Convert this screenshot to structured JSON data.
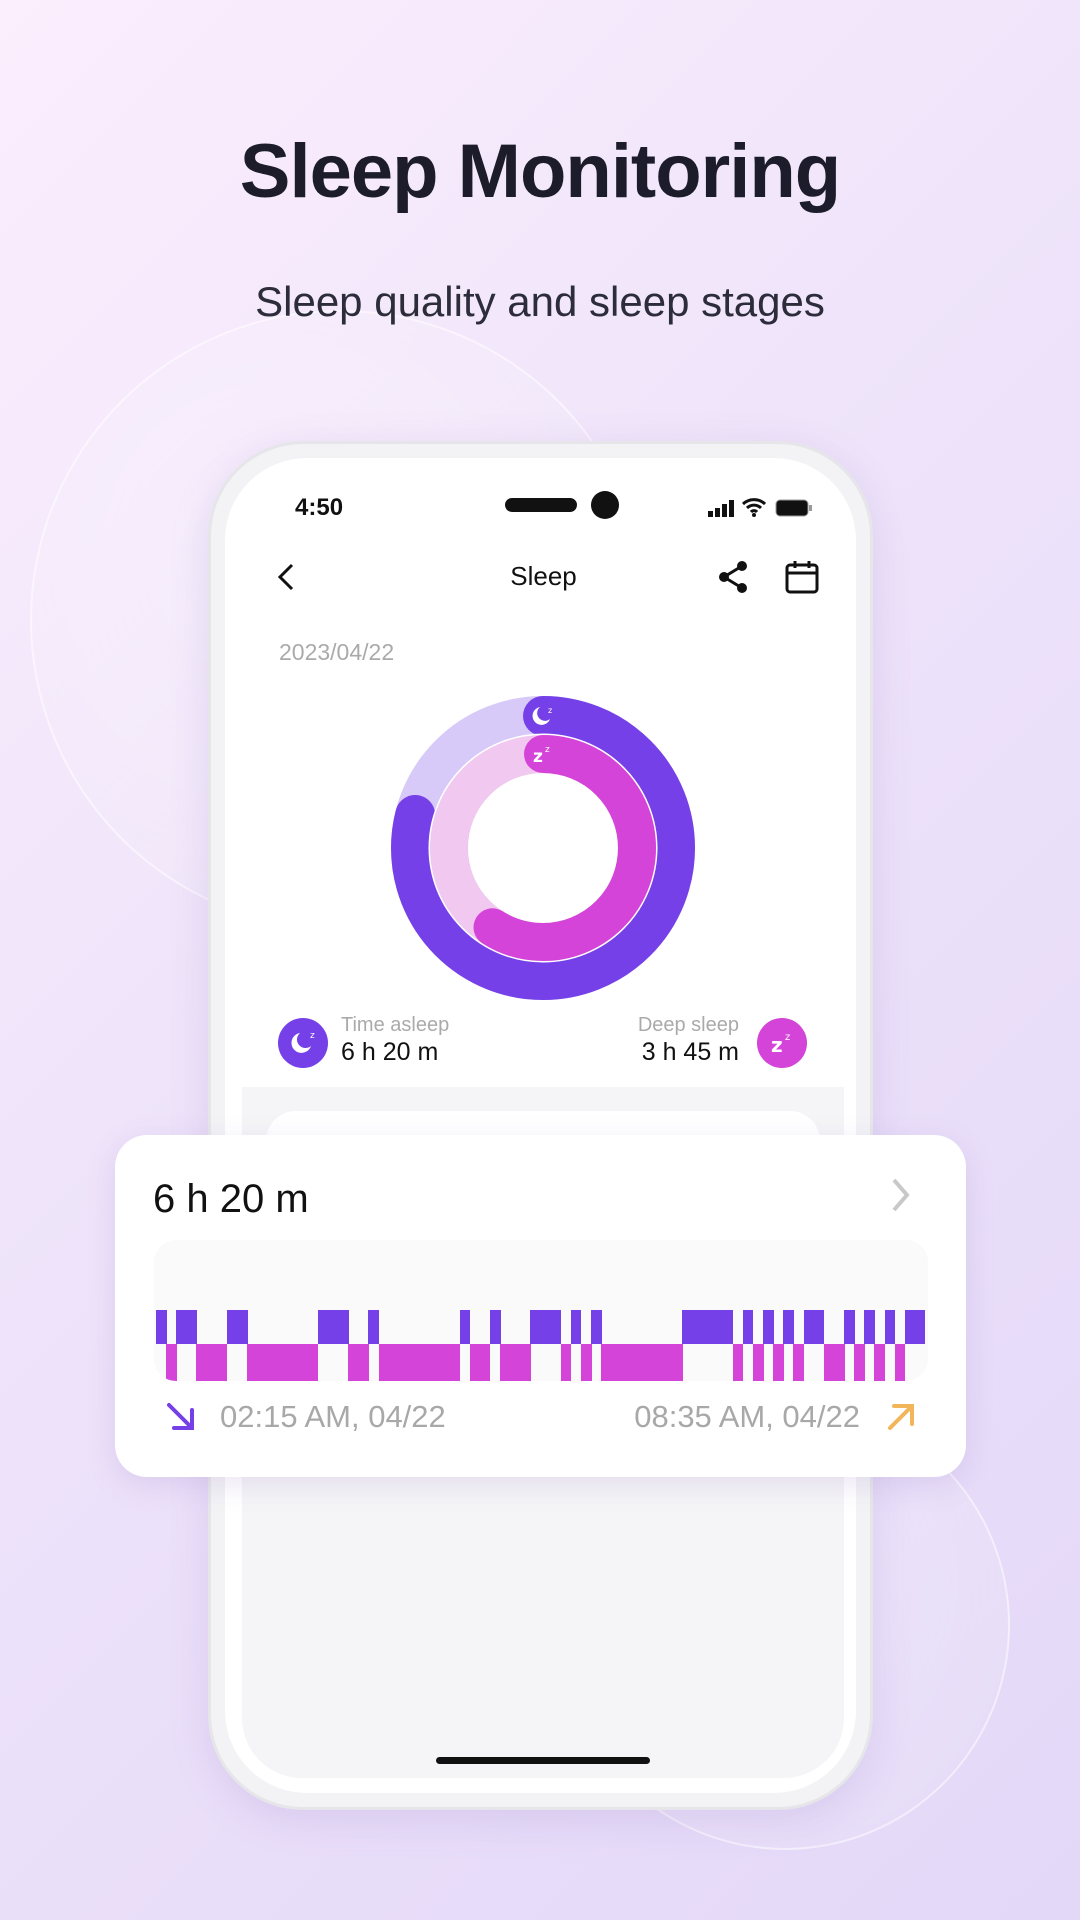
{
  "header": {
    "title": "Sleep Monitoring",
    "subtitle": "Sleep quality and sleep stages"
  },
  "status_bar": {
    "time": "4:50",
    "icons": [
      "signal-icon",
      "wifi-icon",
      "battery-icon"
    ]
  },
  "nav": {
    "title": "Sleep",
    "back_icon": "chevron-left-icon",
    "actions": [
      "share-icon",
      "calendar-icon"
    ]
  },
  "date": "2023/04/22",
  "colors": {
    "light_sleep": "#7540e8",
    "deep_sleep": "#d444d8",
    "light_track": "#d7caf8",
    "deep_track": "#f0c8f0"
  },
  "summary": {
    "time_asleep": {
      "label": "Time asleep",
      "value": "6 h 20 m",
      "icon": "moon-icon"
    },
    "deep_sleep": {
      "label": "Deep sleep",
      "value": "3 h 45 m",
      "icon": "zzz-icon"
    }
  },
  "card": {
    "duration": "6 h 20 m",
    "start": "02:15 AM, 04/22",
    "end": "08:35 AM, 04/22"
  },
  "chart_data": {
    "type": "bar",
    "rings": [
      {
        "name": "Time asleep",
        "fraction": 0.79
      },
      {
        "name": "Deep sleep",
        "fraction": 0.59
      }
    ],
    "timeline_start": "02:15",
    "timeline_end": "08:35",
    "segments_minutes": [
      [
        "light",
        5
      ],
      [
        "deep",
        5
      ],
      [
        "light",
        10
      ],
      [
        "deep",
        15
      ],
      [
        "light",
        10
      ],
      [
        "deep",
        35
      ],
      [
        "light",
        15
      ],
      [
        "deep",
        10
      ],
      [
        "light",
        5
      ],
      [
        "deep",
        40
      ],
      [
        "light",
        5
      ],
      [
        "deep",
        10
      ],
      [
        "light",
        5
      ],
      [
        "deep",
        15
      ],
      [
        "light",
        15
      ],
      [
        "deep",
        5
      ],
      [
        "light",
        5
      ],
      [
        "deep",
        5
      ],
      [
        "light",
        5
      ],
      [
        "deep",
        40
      ],
      [
        "light",
        25
      ],
      [
        "deep",
        5
      ],
      [
        "light",
        5
      ],
      [
        "deep",
        5
      ],
      [
        "light",
        5
      ],
      [
        "deep",
        5
      ],
      [
        "light",
        5
      ],
      [
        "deep",
        5
      ],
      [
        "light",
        10
      ],
      [
        "deep",
        10
      ],
      [
        "light",
        5
      ],
      [
        "deep",
        5
      ],
      [
        "light",
        5
      ],
      [
        "deep",
        5
      ],
      [
        "light",
        5
      ],
      [
        "deep",
        5
      ],
      [
        "light",
        10
      ]
    ]
  }
}
